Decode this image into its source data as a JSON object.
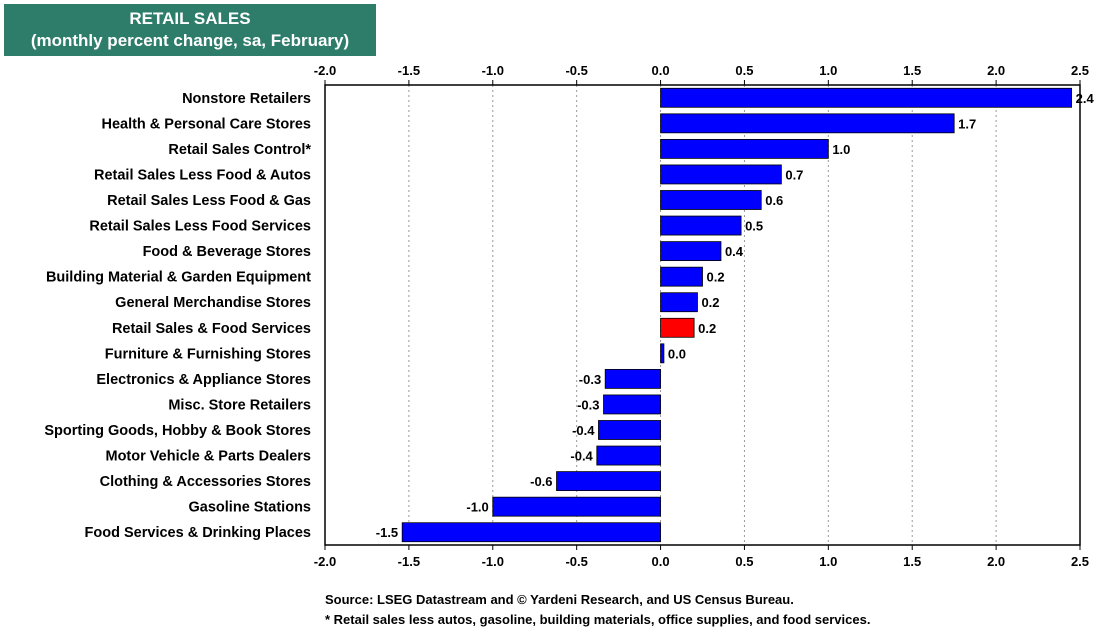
{
  "title": {
    "line1": "RETAIL SALES",
    "line2": "(monthly percent change, sa,  February)"
  },
  "notes": {
    "source": "Source: LSEG Datastream and © Yardeni Research, and US Census Bureau.",
    "footnote": "* Retail sales less autos, gasoline, building materials, office supplies, and food services."
  },
  "colors": {
    "bar": "#0000ff",
    "highlight": "#ff0000",
    "title_bg": "#2e7d6b"
  },
  "chart_data": {
    "type": "bar",
    "orientation": "horizontal",
    "title": "RETAIL SALES (monthly percent change, sa,  February)",
    "xlim": [
      -2.0,
      2.5
    ],
    "ticks": [
      "-2.0",
      "-1.5",
      "-1.0",
      "-0.5",
      "0.0",
      "0.5",
      "1.0",
      "1.5",
      "2.0",
      "2.5"
    ],
    "tick_values": [
      -2.0,
      -1.5,
      -1.0,
      -0.5,
      0.0,
      0.5,
      1.0,
      1.5,
      2.0,
      2.5
    ],
    "grid": "vertical-dotted",
    "highlight_category": "Retail Sales & Food Services",
    "categories": [
      "Nonstore Retailers",
      "Health & Personal Care Stores",
      "Retail Sales Control*",
      "Retail Sales Less Food & Autos",
      "Retail Sales Less Food & Gas",
      "Retail Sales Less Food Services",
      "Food & Beverage Stores",
      "Building Material & Garden Equipment",
      "General Merchandise Stores",
      "Retail Sales & Food Services",
      "Furniture & Furnishing Stores",
      "Electronics & Appliance Stores",
      "Misc. Store Retailers",
      "Sporting Goods, Hobby & Book Stores",
      "Motor Vehicle & Parts Dealers",
      "Clothing & Accessories Stores",
      "Gasoline Stations",
      "Food Services & Drinking Places"
    ],
    "values": [
      2.45,
      1.75,
      1.0,
      0.72,
      0.6,
      0.48,
      0.36,
      0.25,
      0.22,
      0.2,
      0.02,
      -0.33,
      -0.34,
      -0.37,
      -0.38,
      -0.62,
      -1.0,
      -1.54
    ],
    "labels": [
      "2.4",
      "1.7",
      "1.0",
      "0.7",
      "0.6",
      "0.5",
      "0.4",
      "0.2",
      "0.2",
      "0.2",
      "0.0",
      "-0.3",
      "-0.3",
      "-0.4",
      "-0.4",
      "-0.6",
      "-1.0",
      "-1.5"
    ]
  }
}
